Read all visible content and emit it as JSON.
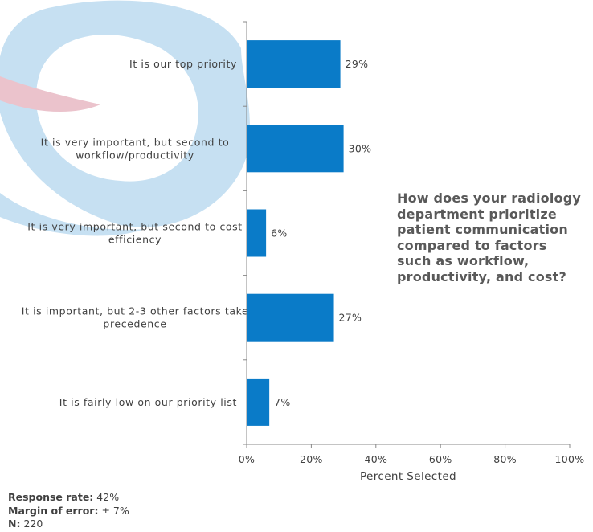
{
  "chart_data": {
    "type": "bar",
    "orientation": "horizontal",
    "categories": [
      [
        "It is our top priority"
      ],
      [
        "It is very important, but second to",
        "workflow/productivity"
      ],
      [
        "It is very important, but second to cost",
        "efficiency"
      ],
      [
        "It is important, but 2-3 other factors take",
        "precedence"
      ],
      [
        "It is fairly low on our priority list"
      ]
    ],
    "values": [
      29,
      30,
      6,
      27,
      7
    ],
    "data_labels": [
      "29%",
      "30%",
      "6%",
      "27%",
      "7%"
    ],
    "xlabel": "Percent Selected",
    "xlim": [
      0,
      100
    ],
    "xticks": [
      0,
      20,
      40,
      60,
      80,
      100
    ],
    "xtick_labels": [
      "0%",
      "20%",
      "40%",
      "60%",
      "80%",
      "100%"
    ],
    "bar_color": "#0a7bc8",
    "grid": false
  },
  "question": "How does your radiology department prioritize patient communication compared to factors such as workflow, productivity, and cost?",
  "footer": {
    "response_rate_label": "Response rate:",
    "response_rate_value": "42%",
    "margin_label": "Margin of error:",
    "margin_value": "± 7%",
    "n_label": "N:",
    "n_value": "220"
  },
  "colors": {
    "logo_blue": "#b9d9ee",
    "logo_pink": "#e8bcc6",
    "axis": "#888888"
  }
}
